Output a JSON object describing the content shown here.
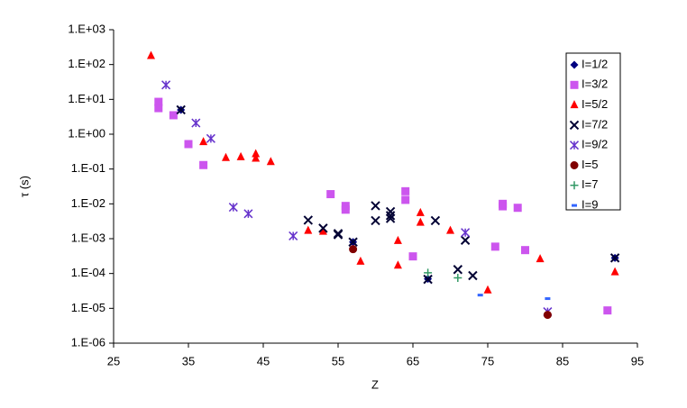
{
  "chart_data": {
    "type": "scatter",
    "x_label": "Z",
    "y_label": "τ (s)",
    "xlim": [
      25,
      95
    ],
    "xticks": [
      25,
      35,
      45,
      55,
      65,
      75,
      85,
      95
    ],
    "ylim": [
      1e-06,
      1000
    ],
    "y_log": true,
    "yticks": [
      {
        "value": 1000,
        "label": "1.E+03"
      },
      {
        "value": 100,
        "label": "1.E+02"
      },
      {
        "value": 10,
        "label": "1.E+01"
      },
      {
        "value": 1,
        "label": "1.E+00"
      },
      {
        "value": 0.1,
        "label": "1.E-01"
      },
      {
        "value": 0.01,
        "label": "1.E-02"
      },
      {
        "value": 0.001,
        "label": "1.E-03"
      },
      {
        "value": 0.0001,
        "label": "1.E-04"
      },
      {
        "value": 1e-05,
        "label": "1.E-05"
      },
      {
        "value": 1e-06,
        "label": "1.E-06"
      }
    ],
    "legend": "upper-right",
    "series": [
      {
        "name": "I=1/2",
        "color": "#000080",
        "marker": "diamond",
        "x": [
          34,
          57,
          67,
          92
        ],
        "values": [
          5,
          0.0008,
          7e-05,
          0.00028
        ]
      },
      {
        "name": "I=3/2",
        "color": "#cc55ee",
        "marker": "square",
        "x": [
          31,
          31,
          33,
          35,
          37,
          54,
          56,
          56,
          64,
          64,
          65,
          76,
          77,
          77,
          79,
          80,
          91
        ],
        "values": [
          8.5,
          5.6,
          3.5,
          0.52,
          0.13,
          0.019,
          0.0087,
          0.0068,
          0.023,
          0.013,
          0.00031,
          0.00059,
          0.01,
          0.0085,
          0.0077,
          0.00047,
          8.7e-06
        ]
      },
      {
        "name": "I=5/2",
        "color": "#ff0000",
        "marker": "triangle",
        "x": [
          30,
          37,
          40,
          42,
          44,
          44,
          46,
          51,
          53,
          58,
          63,
          63,
          66,
          66,
          70,
          75,
          82,
          92
        ],
        "values": [
          178,
          0.6,
          0.21,
          0.22,
          0.27,
          0.2,
          0.16,
          0.0017,
          0.0016,
          0.00022,
          0.00087,
          0.00017,
          0.0055,
          0.0029,
          0.0017,
          3.3e-05,
          0.00026,
          0.00011
        ]
      },
      {
        "name": "I=7/2",
        "color": "#000033",
        "marker": "x",
        "x": [
          34,
          51,
          53,
          55,
          55,
          57,
          60,
          60,
          62,
          62,
          62,
          67,
          68,
          71,
          72,
          73,
          92
        ],
        "values": [
          5,
          0.0034,
          0.002,
          0.0014,
          0.0013,
          0.0008,
          0.0088,
          0.0033,
          0.006,
          0.0046,
          0.0038,
          6.8e-05,
          0.0033,
          0.00013,
          0.0009,
          8.7e-05,
          0.00028
        ]
      },
      {
        "name": "I=9/2",
        "color": "#6633cc",
        "marker": "asterisk",
        "x": [
          32,
          36,
          38,
          41,
          43,
          49,
          72,
          83
        ],
        "values": [
          26,
          2.1,
          0.75,
          0.008,
          0.0052,
          0.0012,
          0.0015,
          8e-06
        ]
      },
      {
        "name": "I=5",
        "color": "#800000",
        "marker": "circle",
        "x": [
          57,
          83
        ],
        "values": [
          0.0005,
          6.5e-06
        ]
      },
      {
        "name": "I=7",
        "color": "#339966",
        "marker": "plus",
        "x": [
          67,
          71
        ],
        "values": [
          0.000105,
          7.5e-05
        ]
      },
      {
        "name": "I=9",
        "color": "#3366ff",
        "marker": "dash",
        "x": [
          74,
          83
        ],
        "values": [
          2.4e-05,
          1.9e-05
        ]
      }
    ]
  }
}
